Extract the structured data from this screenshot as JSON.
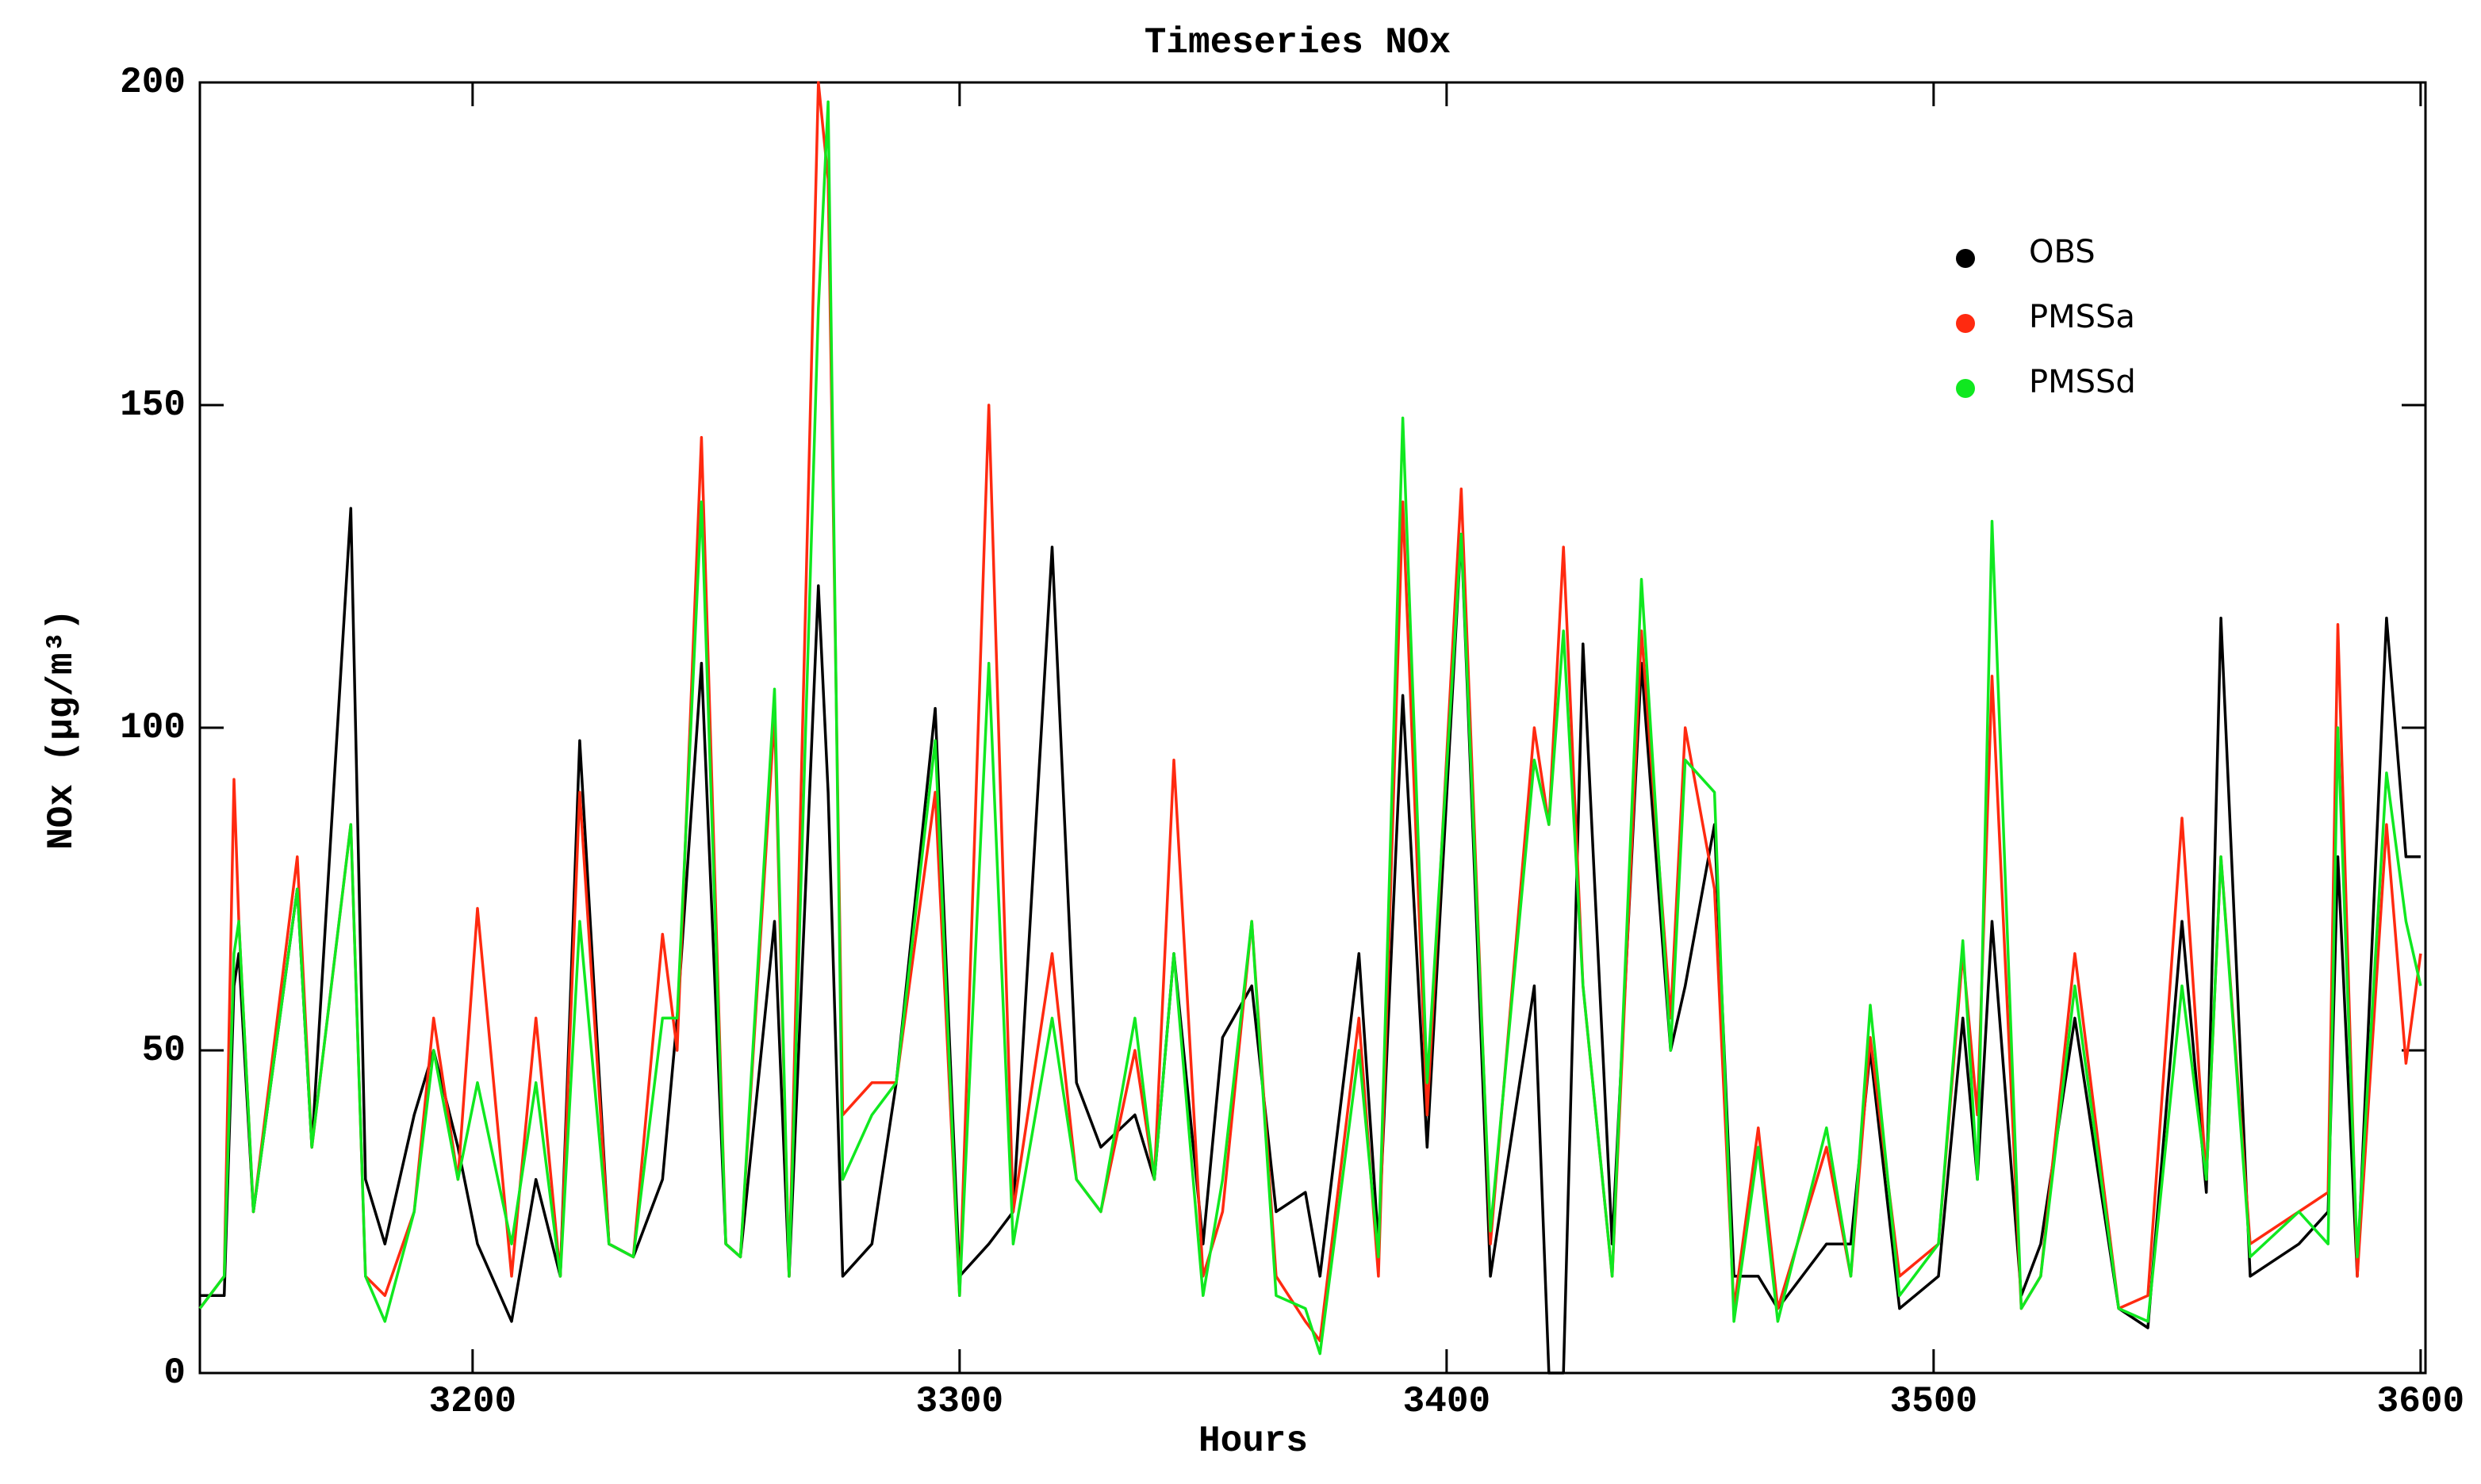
{
  "chart_data": {
    "type": "line",
    "title": "Timeseries NOx",
    "x_label": "Hours",
    "y_label": "NOx (μg/m³)",
    "x": [
      3144,
      3149,
      3151,
      3152,
      3155,
      3164,
      3167,
      3175,
      3178,
      3182,
      3188,
      3192,
      3197,
      3201,
      3208,
      3213,
      3218,
      3222,
      3228,
      3233,
      3239,
      3242,
      3247,
      3252,
      3255,
      3262,
      3265,
      3271,
      3273,
      3276,
      3282,
      3287,
      3295,
      3300,
      3306,
      3311,
      3319,
      3324,
      3329,
      3336,
      3340,
      3344,
      3350,
      3354,
      3360,
      3365,
      3371,
      3374,
      3382,
      3386,
      3391,
      3396,
      3403,
      3409,
      3418,
      3421,
      3424,
      3428,
      3434,
      3440,
      3446,
      3449,
      3455,
      3459,
      3464,
      3468,
      3478,
      3483,
      3487,
      3493,
      3501,
      3506,
      3509,
      3512,
      3518,
      3522,
      3529,
      3538,
      3544,
      3551,
      3556,
      3559,
      3565,
      3575,
      3581,
      3583,
      3587,
      3593,
      3597,
      3600
    ],
    "series": [
      {
        "name": "OBS",
        "color": "#000000",
        "values": [
          12,
          12,
          60,
          65,
          25,
          75,
          35,
          134,
          30,
          20,
          40,
          50,
          35,
          20,
          8,
          30,
          15,
          98,
          20,
          18,
          30,
          55,
          110,
          20,
          18,
          70,
          15,
          122,
          90,
          15,
          20,
          45,
          103,
          15,
          20,
          25,
          128,
          45,
          35,
          40,
          30,
          65,
          20,
          52,
          60,
          25,
          28,
          15,
          65,
          20,
          105,
          35,
          130,
          15,
          60,
          0,
          0,
          113,
          20,
          110,
          50,
          60,
          85,
          15,
          15,
          10,
          20,
          20,
          50,
          10,
          15,
          55,
          30,
          70,
          12,
          20,
          55,
          10,
          7,
          70,
          28,
          117,
          15,
          20,
          25,
          80,
          15,
          117,
          80,
          80
        ]
      },
      {
        "name": "PMSSa",
        "color": "#ff2a10",
        "values": [
          10,
          15,
          92,
          70,
          25,
          80,
          35,
          85,
          15,
          12,
          25,
          55,
          30,
          72,
          15,
          55,
          15,
          90,
          20,
          18,
          68,
          50,
          145,
          20,
          18,
          102,
          15,
          200,
          185,
          40,
          45,
          45,
          90,
          12,
          150,
          25,
          65,
          30,
          25,
          50,
          30,
          95,
          15,
          25,
          70,
          15,
          8,
          5,
          55,
          15,
          135,
          40,
          137,
          20,
          100,
          85,
          128,
          60,
          15,
          115,
          55,
          100,
          75,
          10,
          38,
          10,
          35,
          15,
          52,
          15,
          20,
          65,
          40,
          108,
          10,
          15,
          65,
          10,
          12,
          86,
          30,
          80,
          20,
          25,
          28,
          116,
          15,
          85,
          48,
          65
        ]
      },
      {
        "name": "PMSSd",
        "color": "#10e820",
        "values": [
          10,
          15,
          65,
          70,
          25,
          75,
          35,
          85,
          15,
          8,
          25,
          50,
          30,
          45,
          20,
          45,
          15,
          70,
          20,
          18,
          55,
          55,
          135,
          20,
          18,
          106,
          15,
          165,
          197,
          30,
          40,
          45,
          98,
          12,
          110,
          20,
          55,
          30,
          25,
          55,
          30,
          65,
          12,
          30,
          70,
          12,
          10,
          3,
          50,
          18,
          148,
          45,
          130,
          22,
          95,
          85,
          115,
          60,
          15,
          123,
          50,
          95,
          90,
          8,
          35,
          8,
          38,
          15,
          57,
          12,
          20,
          67,
          30,
          132,
          10,
          15,
          60,
          10,
          8,
          60,
          30,
          80,
          18,
          25,
          20,
          100,
          18,
          93,
          70,
          60
        ]
      }
    ],
    "xlim": [
      3144,
      3601
    ],
    "xticks": [
      3200,
      3300,
      3400,
      3500,
      3600
    ],
    "ylim": [
      0,
      200
    ],
    "yticks": [
      0,
      50,
      100,
      150,
      200
    ],
    "legend": "upper right"
  }
}
